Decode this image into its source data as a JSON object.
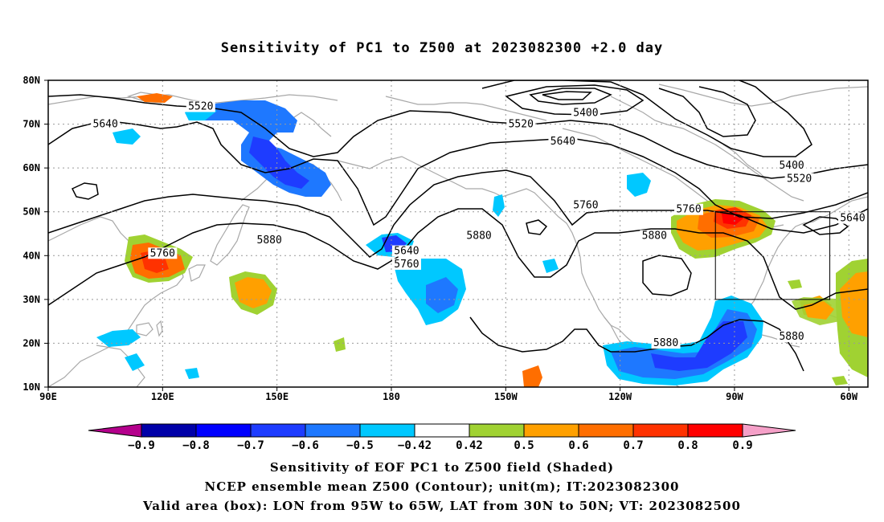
{
  "title": "Sensitivity of PC1 to Z500 at 2023082300 +2.0 day",
  "map": {
    "lon_range": [
      90,
      305
    ],
    "lat_range": [
      10,
      80
    ],
    "lon_ticks": [
      {
        "lon": 90,
        "label": "90E"
      },
      {
        "lon": 120,
        "label": "120E"
      },
      {
        "lon": 150,
        "label": "150E"
      },
      {
        "lon": 180,
        "label": "180"
      },
      {
        "lon": 210,
        "label": "150W"
      },
      {
        "lon": 240,
        "label": "120W"
      },
      {
        "lon": 270,
        "label": "90W"
      },
      {
        "lon": 300,
        "label": "60W"
      }
    ],
    "lat_ticks": [
      {
        "lat": 10,
        "label": "10N"
      },
      {
        "lat": 20,
        "label": "20N"
      },
      {
        "lat": 30,
        "label": "30N"
      },
      {
        "lat": 40,
        "label": "40N"
      },
      {
        "lat": 50,
        "label": "50N"
      },
      {
        "lat": 60,
        "label": "60N"
      },
      {
        "lat": 70,
        "label": "70N"
      },
      {
        "lat": 80,
        "label": "80N"
      }
    ],
    "grid": "dotted",
    "box": {
      "lon_min": 265,
      "lon_max": 295,
      "lat_min": 30,
      "lat_max": 50
    },
    "contour_labels": [
      {
        "text": "5520",
        "lon": 130,
        "lat": 73.5
      },
      {
        "text": "5640",
        "lon": 105,
        "lat": 69.5
      },
      {
        "text": "5520",
        "lon": 214,
        "lat": 69.5
      },
      {
        "text": "5400",
        "lon": 231,
        "lat": 72
      },
      {
        "text": "5640",
        "lon": 225,
        "lat": 65.5
      },
      {
        "text": "5400",
        "lon": 285,
        "lat": 60
      },
      {
        "text": "5520",
        "lon": 287,
        "lat": 57
      },
      {
        "text": "5760",
        "lon": 231,
        "lat": 51
      },
      {
        "text": "5760",
        "lon": 258,
        "lat": 50
      },
      {
        "text": "5640",
        "lon": 301,
        "lat": 48
      },
      {
        "text": "5880",
        "lon": 148,
        "lat": 43
      },
      {
        "text": "5880",
        "lon": 203,
        "lat": 44
      },
      {
        "text": "5880",
        "lon": 249,
        "lat": 44
      },
      {
        "text": "5760",
        "lon": 120,
        "lat": 40
      },
      {
        "text": "5640",
        "lon": 184,
        "lat": 40.5
      },
      {
        "text": "5760",
        "lon": 184,
        "lat": 37.5
      },
      {
        "text": "5880",
        "lon": 252,
        "lat": 19.5
      },
      {
        "text": "5880",
        "lon": 285,
        "lat": 21
      }
    ]
  },
  "colorbar": {
    "labels": [
      "-0.9",
      "-0.8",
      "-0.7",
      "-0.6",
      "-0.5",
      "-0.42",
      "0.42",
      "0.5",
      "0.6",
      "0.7",
      "0.8",
      "0.9"
    ],
    "colors": [
      "#b4008c",
      "#0000a8",
      "#0000ff",
      "#1e3cff",
      "#1e78ff",
      "#00c8ff",
      "#ffffff",
      "#a0d232",
      "#ffa000",
      "#ff6e00",
      "#ff3200",
      "#ff0000",
      "#f5a0c8"
    ]
  },
  "captions": [
    "Sensitivity of EOF PC1 to Z500 field (Shaded)",
    "NCEP ensemble mean Z500 (Contour); unit(m); IT:2023082300",
    "Valid area (box): LON from 95W to 65W, LAT from 30N to 50N; VT: 2023082500"
  ]
}
